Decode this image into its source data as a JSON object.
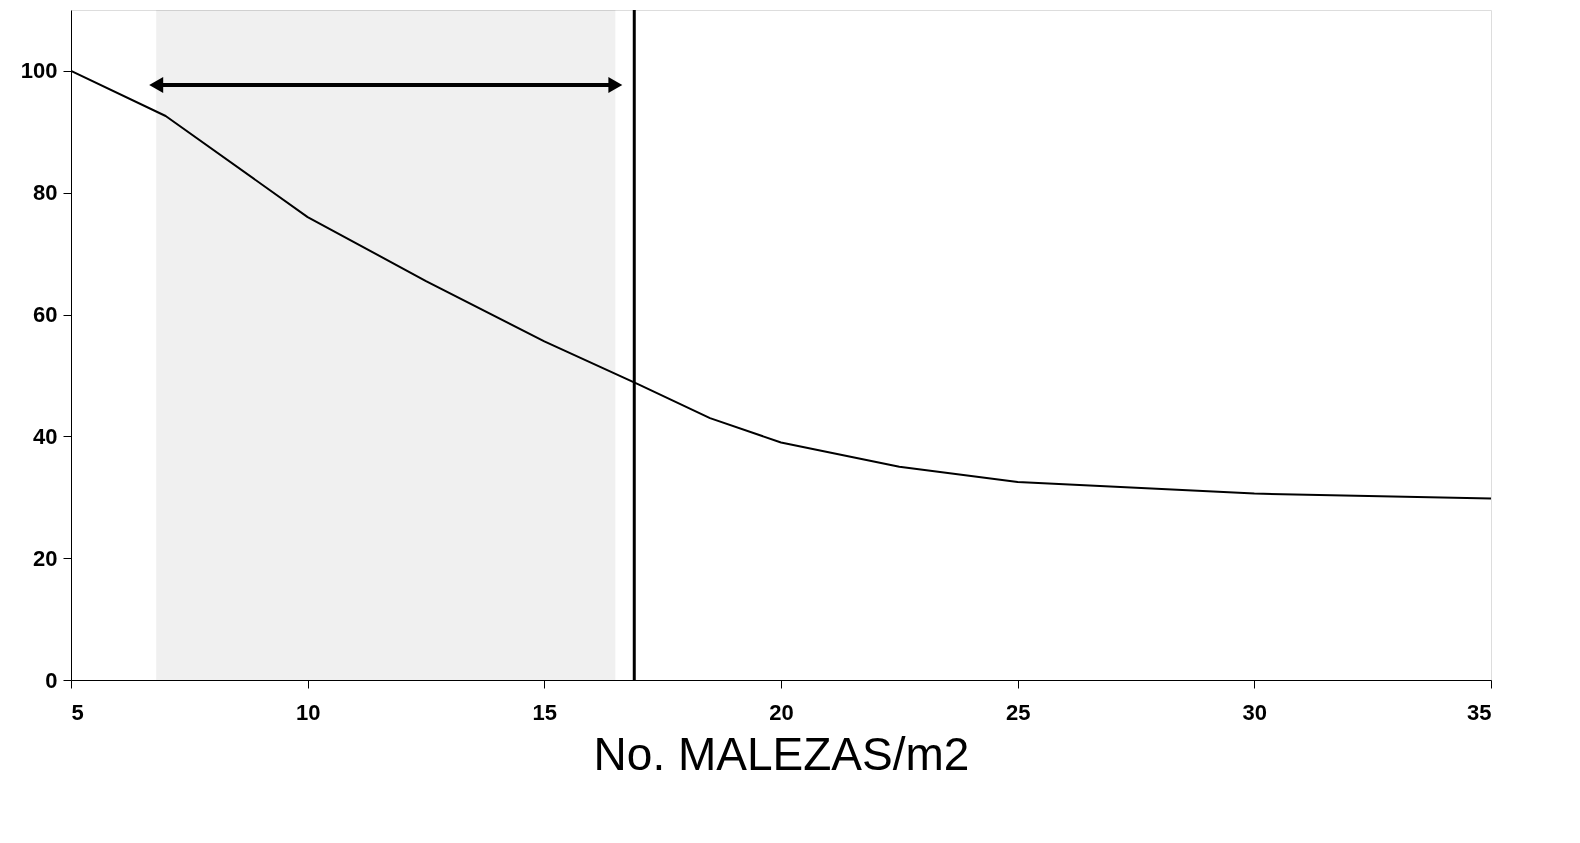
{
  "chart_data": {
    "type": "line",
    "xlabel": "No. MALEZAS/m2",
    "x": [
      5,
      7,
      10,
      12.5,
      15,
      17,
      18.5,
      20,
      22.5,
      25,
      30,
      35
    ],
    "series": [
      {
        "color": "#000000",
        "values": [
          100,
          92.6,
          76,
          65.5,
          55.6,
          48.5,
          43,
          39,
          35,
          32.5,
          30.6,
          29.8
        ]
      }
    ],
    "xlim": [
      5,
      35
    ],
    "xticks": [
      5,
      10,
      15,
      20,
      25,
      30,
      35
    ],
    "ylim": [
      0,
      110
    ],
    "yticks": [
      0,
      20,
      40,
      60,
      80,
      100
    ],
    "ref_lines": [
      {
        "axis": "x",
        "value": 16.9,
        "color": "#000000"
      }
    ],
    "bands": [
      {
        "axis": "x",
        "from": 6.8,
        "to": 16.5,
        "color": "#000000"
      }
    ],
    "grid": false,
    "legend": false,
    "marker": "none",
    "line_style": "solid"
  }
}
